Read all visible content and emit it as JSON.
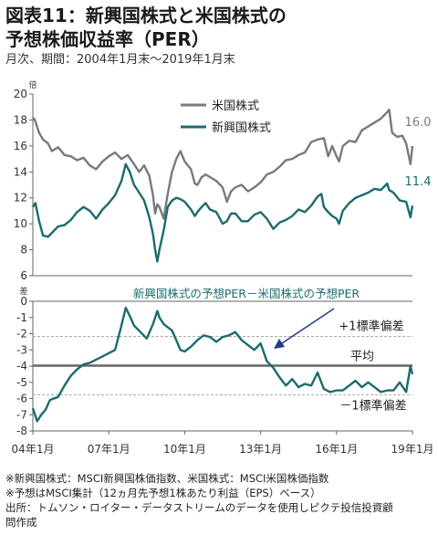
{
  "title_line1": "図表11：新興国株式と米国株式の",
  "title_line2": "予想株価収益率（PER）",
  "subtitle": "月次、期間：2004年1月末～2019年1月末",
  "notes": [
    "※新興国株式：MSCI新興国株価指数、米国株式：MSCI米国株価指数",
    "※予想はMSCI集計（12ヵ月先予想1株あたり利益（EPS）ベース）",
    "出所：トムソン・ロイター・データストリームのデータを使用しピクテ投信投資顧",
    "問作成"
  ],
  "chart_data": [
    {
      "type": "line",
      "ylabel": "倍",
      "ylim": [
        6,
        20
      ],
      "yticks": [
        "6",
        "8",
        "10",
        "12",
        "14",
        "16",
        "18",
        "20"
      ],
      "colors": {
        "us": "#7a7a7a",
        "em": "#1b6b6e"
      },
      "series": [
        {
          "name": "米国株式",
          "end_label": "16.0",
          "x": [
            2004.0,
            2004.08,
            2004.25,
            2004.4,
            2004.6,
            2004.75,
            2005.0,
            2005.25,
            2005.5,
            2005.75,
            2006.0,
            2006.25,
            2006.5,
            2006.75,
            2007.0,
            2007.25,
            2007.5,
            2007.75,
            2008.0,
            2008.2,
            2008.4,
            2008.6,
            2008.75,
            2008.83,
            2008.92,
            2009.0,
            2009.17,
            2009.33,
            2009.5,
            2009.67,
            2009.83,
            2010.0,
            2010.25,
            2010.4,
            2010.5,
            2010.67,
            2010.83,
            2011.0,
            2011.25,
            2011.5,
            2011.67,
            2011.83,
            2012.0,
            2012.25,
            2012.5,
            2012.75,
            2013.0,
            2013.25,
            2013.5,
            2013.75,
            2014.0,
            2014.25,
            2014.5,
            2014.75,
            2015.0,
            2015.25,
            2015.5,
            2015.67,
            2015.83,
            2016.0,
            2016.1,
            2016.25,
            2016.5,
            2016.75,
            2017.0,
            2017.25,
            2017.5,
            2017.75,
            2018.0,
            2018.08,
            2018.2,
            2018.4,
            2018.6,
            2018.75,
            2018.92,
            2019.0
          ],
          "y": [
            18.2,
            18.0,
            17.0,
            16.5,
            16.2,
            15.6,
            15.9,
            15.3,
            15.2,
            14.9,
            15.1,
            14.5,
            14.2,
            14.8,
            15.2,
            15.5,
            15.0,
            15.3,
            14.6,
            14.0,
            14.5,
            13.7,
            12.2,
            10.8,
            11.5,
            11.3,
            10.4,
            12.3,
            14.0,
            15.0,
            15.6,
            14.8,
            14.2,
            13.1,
            13.0,
            13.6,
            13.8,
            13.6,
            13.3,
            12.8,
            11.7,
            12.5,
            12.8,
            13.0,
            12.5,
            12.8,
            13.2,
            13.8,
            14.0,
            14.4,
            14.9,
            15.0,
            15.3,
            15.5,
            16.3,
            16.5,
            16.6,
            15.2,
            16.0,
            15.2,
            14.8,
            16.0,
            16.4,
            16.3,
            17.2,
            17.5,
            17.8,
            18.1,
            18.6,
            18.8,
            17.0,
            16.7,
            16.8,
            16.2,
            14.6,
            16.0
          ]
        },
        {
          "name": "新興国株式",
          "end_label": "11.4",
          "x": [
            2004.0,
            2004.1,
            2004.25,
            2004.4,
            2004.6,
            2004.8,
            2005.0,
            2005.25,
            2005.5,
            2005.75,
            2006.0,
            2006.25,
            2006.5,
            2006.75,
            2007.0,
            2007.25,
            2007.5,
            2007.67,
            2007.83,
            2008.0,
            2008.2,
            2008.4,
            2008.6,
            2008.75,
            2008.83,
            2008.92,
            2009.0,
            2009.17,
            2009.33,
            2009.5,
            2009.67,
            2009.83,
            2010.0,
            2010.25,
            2010.4,
            2010.5,
            2010.67,
            2010.83,
            2011.0,
            2011.25,
            2011.5,
            2011.67,
            2011.83,
            2012.0,
            2012.25,
            2012.5,
            2012.75,
            2013.0,
            2013.25,
            2013.5,
            2013.75,
            2014.0,
            2014.25,
            2014.5,
            2014.75,
            2015.0,
            2015.25,
            2015.4,
            2015.5,
            2015.67,
            2015.83,
            2016.0,
            2016.1,
            2016.25,
            2016.5,
            2016.75,
            2017.0,
            2017.25,
            2017.5,
            2017.75,
            2018.0,
            2018.08,
            2018.25,
            2018.5,
            2018.75,
            2018.92,
            2019.0
          ],
          "y": [
            11.3,
            11.6,
            10.2,
            9.1,
            9.0,
            9.4,
            9.8,
            9.9,
            10.3,
            10.9,
            11.3,
            11.0,
            10.4,
            11.1,
            11.6,
            12.2,
            13.3,
            14.6,
            14.0,
            13.0,
            12.4,
            11.8,
            10.5,
            9.2,
            8.0,
            7.1,
            8.0,
            9.5,
            11.3,
            11.8,
            12.0,
            11.9,
            11.7,
            11.1,
            10.6,
            10.9,
            11.3,
            11.6,
            11.1,
            10.9,
            10.0,
            10.2,
            10.8,
            10.8,
            10.2,
            10.2,
            10.7,
            10.9,
            10.4,
            9.6,
            10.1,
            10.3,
            10.6,
            11.1,
            10.9,
            11.4,
            12.1,
            12.3,
            11.3,
            10.9,
            10.6,
            10.4,
            10.0,
            11.0,
            11.6,
            12.0,
            12.2,
            12.4,
            12.7,
            12.6,
            13.1,
            12.6,
            12.4,
            11.8,
            11.7,
            10.5,
            11.4
          ]
        }
      ]
    },
    {
      "type": "line",
      "title": "新興国株式の予想PER－米国株式の予想PER",
      "ylabel": "差",
      "ylim": [
        -8,
        0
      ],
      "yticks": [
        "0",
        "-1",
        "-2",
        "-3",
        "-4",
        "-5",
        "-6",
        "-7",
        "-8"
      ],
      "xticks": [
        {
          "value": 2004,
          "label": "04年1月"
        },
        {
          "value": 2007,
          "label": "07年1月"
        },
        {
          "value": 2010,
          "label": "10年1月"
        },
        {
          "value": 2013,
          "label": "13年1月"
        },
        {
          "value": 2016,
          "label": "16年1月"
        },
        {
          "value": 2019,
          "label": "19年1月"
        }
      ],
      "mean": -3.97,
      "plus_1sd": -2.17,
      "minus_1sd": -5.77,
      "annotations": {
        "plus": "+1標準偏差",
        "mean": "平均",
        "minus": "－1標準偏差"
      },
      "x": [
        2004.0,
        2004.17,
        2004.33,
        2004.5,
        2004.67,
        2004.83,
        2005.0,
        2005.25,
        2005.5,
        2005.75,
        2006.0,
        2006.25,
        2006.5,
        2006.75,
        2007.0,
        2007.25,
        2007.5,
        2007.67,
        2007.83,
        2008.0,
        2008.25,
        2008.5,
        2008.75,
        2008.92,
        2009.0,
        2009.17,
        2009.33,
        2009.5,
        2009.67,
        2009.83,
        2010.0,
        2010.25,
        2010.5,
        2010.75,
        2011.0,
        2011.25,
        2011.5,
        2011.75,
        2012.0,
        2012.25,
        2012.5,
        2012.75,
        2013.0,
        2013.25,
        2013.5,
        2013.75,
        2014.0,
        2014.25,
        2014.5,
        2014.75,
        2015.0,
        2015.25,
        2015.5,
        2015.75,
        2016.0,
        2016.25,
        2016.5,
        2016.75,
        2017.0,
        2017.25,
        2017.5,
        2017.75,
        2018.0,
        2018.25,
        2018.5,
        2018.75,
        2018.92,
        2019.0
      ],
      "y": [
        -6.6,
        -7.4,
        -7.0,
        -6.7,
        -6.1,
        -6.0,
        -5.9,
        -5.2,
        -4.6,
        -4.2,
        -3.9,
        -3.8,
        -3.6,
        -3.4,
        -3.2,
        -3.0,
        -1.5,
        -0.4,
        -0.9,
        -1.5,
        -1.9,
        -2.3,
        -1.4,
        -0.6,
        -1.0,
        -1.4,
        -1.6,
        -1.8,
        -2.4,
        -3.0,
        -3.1,
        -2.8,
        -2.4,
        -2.1,
        -2.2,
        -2.5,
        -2.2,
        -2.1,
        -1.9,
        -2.4,
        -2.7,
        -3.0,
        -2.6,
        -3.7,
        -4.1,
        -4.7,
        -5.2,
        -4.8,
        -5.3,
        -5.1,
        -5.2,
        -4.4,
        -5.4,
        -5.6,
        -5.5,
        -5.5,
        -5.2,
        -4.9,
        -5.3,
        -5.0,
        -5.3,
        -5.6,
        -5.5,
        -5.5,
        -5.0,
        -5.6,
        -4.0,
        -4.5
      ]
    }
  ]
}
